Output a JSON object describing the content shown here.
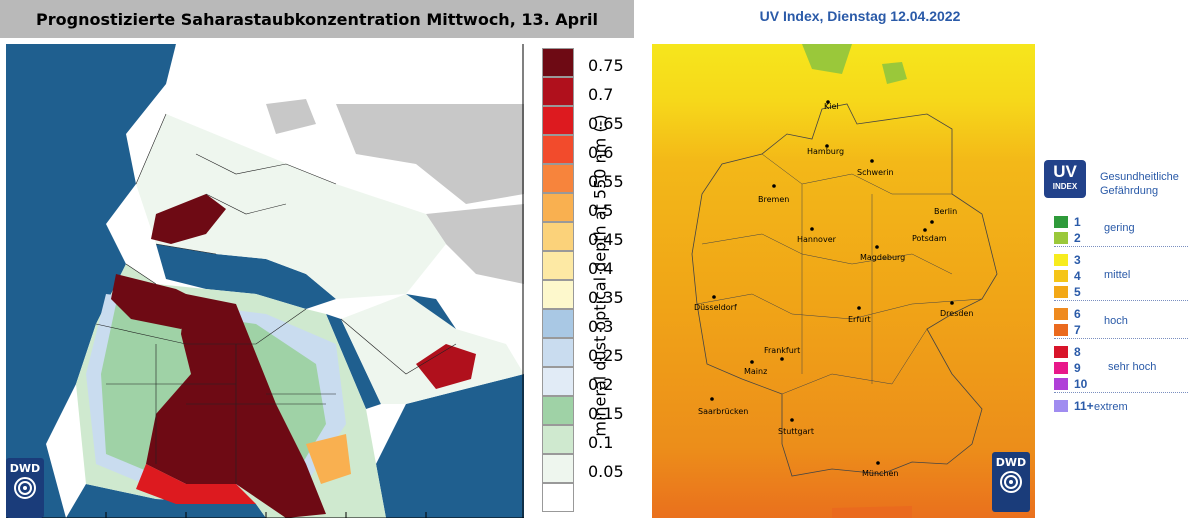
{
  "left_panel": {
    "title": "Prognostizierte Saharastaubkonzentration Mittwoch, 13. April",
    "colorbar": {
      "axis_label": "mineral dust optical depth at 550 nm (-)",
      "levels": [
        {
          "label": "0.75",
          "color": "#6e0a14"
        },
        {
          "label": "0.7",
          "color": "#b0101c"
        },
        {
          "label": "0.65",
          "color": "#dd1a1f"
        },
        {
          "label": "0.6",
          "color": "#f24b2c"
        },
        {
          "label": "0.55",
          "color": "#f7843c"
        },
        {
          "label": "0.5",
          "color": "#f9b050"
        },
        {
          "label": "0.45",
          "color": "#fbd27a"
        },
        {
          "label": "0.4",
          "color": "#fde9a4"
        },
        {
          "label": "0.35",
          "color": "#fdf8cc"
        },
        {
          "label": "0.3",
          "color": "#a9c8e4"
        },
        {
          "label": "0.25",
          "color": "#c9dcef"
        },
        {
          "label": "0.2",
          "color": "#e1ebf6"
        },
        {
          "label": "0.15",
          "color": "#9fd2a6"
        },
        {
          "label": "0.1",
          "color": "#cfe9cf"
        },
        {
          "label": "0.05",
          "color": "#eef6ee"
        },
        {
          "label": "",
          "color": "#ffffff"
        }
      ]
    },
    "logo_text": "DWD"
  },
  "right_panel": {
    "title": "UV Index, Dienstag 12.04.2022",
    "cities": [
      "Kiel",
      "Hamburg",
      "Schwerin",
      "Bremen",
      "Berlin",
      "Potsdam",
      "Hannover",
      "Magdeburg",
      "Düsseldorf",
      "Erfurt",
      "Dresden",
      "Frankfurt",
      "Mainz",
      "Saarbrücken",
      "Stuttgart",
      "München"
    ],
    "legend": {
      "badge_big": "UV",
      "badge_small": "INDEX",
      "heading_line1": "Gesundheitliche",
      "heading_line2": "Gefährdung",
      "rows": [
        {
          "num": "1",
          "color": "#2e9a3a"
        },
        {
          "num": "2",
          "color": "#9ac83a"
        },
        {
          "num": "3",
          "color": "#f7ec1e"
        },
        {
          "num": "4",
          "color": "#f5c518"
        },
        {
          "num": "5",
          "color": "#f3a816"
        },
        {
          "num": "6",
          "color": "#ef8a1e"
        },
        {
          "num": "7",
          "color": "#ea6a1e"
        },
        {
          "num": "8",
          "color": "#d8142a"
        },
        {
          "num": "9",
          "color": "#e8188a"
        },
        {
          "num": "10",
          "color": "#b040d8"
        },
        {
          "num": "11+",
          "color": "#a08cf0"
        }
      ],
      "categories": [
        "gering",
        "mittel",
        "hoch",
        "sehr hoch",
        "extrem"
      ]
    },
    "logo_text": "DWD"
  },
  "colors": {
    "ocean": "#1f5f8f",
    "title_bar": "#b9b9b9",
    "uv_title": "#2a5aa8"
  }
}
